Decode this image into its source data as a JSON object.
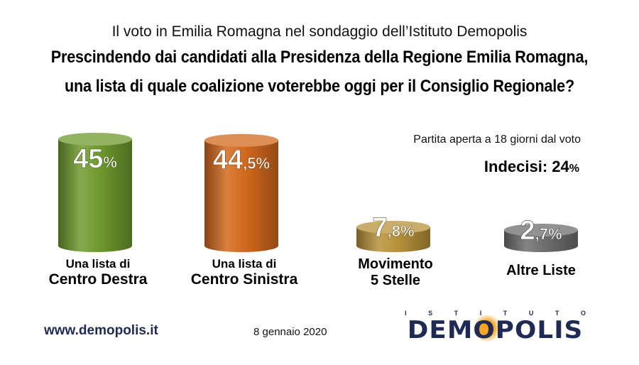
{
  "header": {
    "subtitle": "Il voto in Emilia Romagna nel sondaggio dell’Istituto Demopolis",
    "title_line1": "Prescindendo dai candidati alla Presidenza della Regione Emilia Romagna,",
    "title_line2": "una lista di quale coalizione voterebbe oggi per il Consiglio Regionale?"
  },
  "note": "Partita aperta a 18 giorni dal voto",
  "undecided": {
    "label": "Indecisi:",
    "value": "24",
    "unit": "%"
  },
  "chart_data": {
    "type": "bar",
    "categories": [
      "Una lista di Centro Destra",
      "Una lista di Centro Sinistra",
      "Movimento 5 Stelle",
      "Altre Liste"
    ],
    "values": [
      45,
      44.5,
      7.8,
      2.7
    ],
    "value_labels": [
      {
        "main": "45",
        "suffix": "%"
      },
      {
        "main": "44",
        "suffix": ",5%"
      },
      {
        "main": "7",
        "suffix": ",8%"
      },
      {
        "main": "2",
        "suffix": ",7%"
      }
    ],
    "colors": [
      "#6f9a2e",
      "#d2691e",
      "#b8923a",
      "#6e6e6e"
    ],
    "label_lines": [
      [
        "Una lista di",
        "Centro Destra"
      ],
      [
        "Una lista di",
        "Centro Sinistra"
      ],
      [
        "Movimento",
        "5 Stelle"
      ],
      [
        "",
        "Altre Liste"
      ]
    ]
  },
  "footer": {
    "url": "www.demopolis.it",
    "date": "8 gennaio 2020",
    "logo_small": "ISTITUTO",
    "logo_big": "DEMOPOLIS"
  }
}
